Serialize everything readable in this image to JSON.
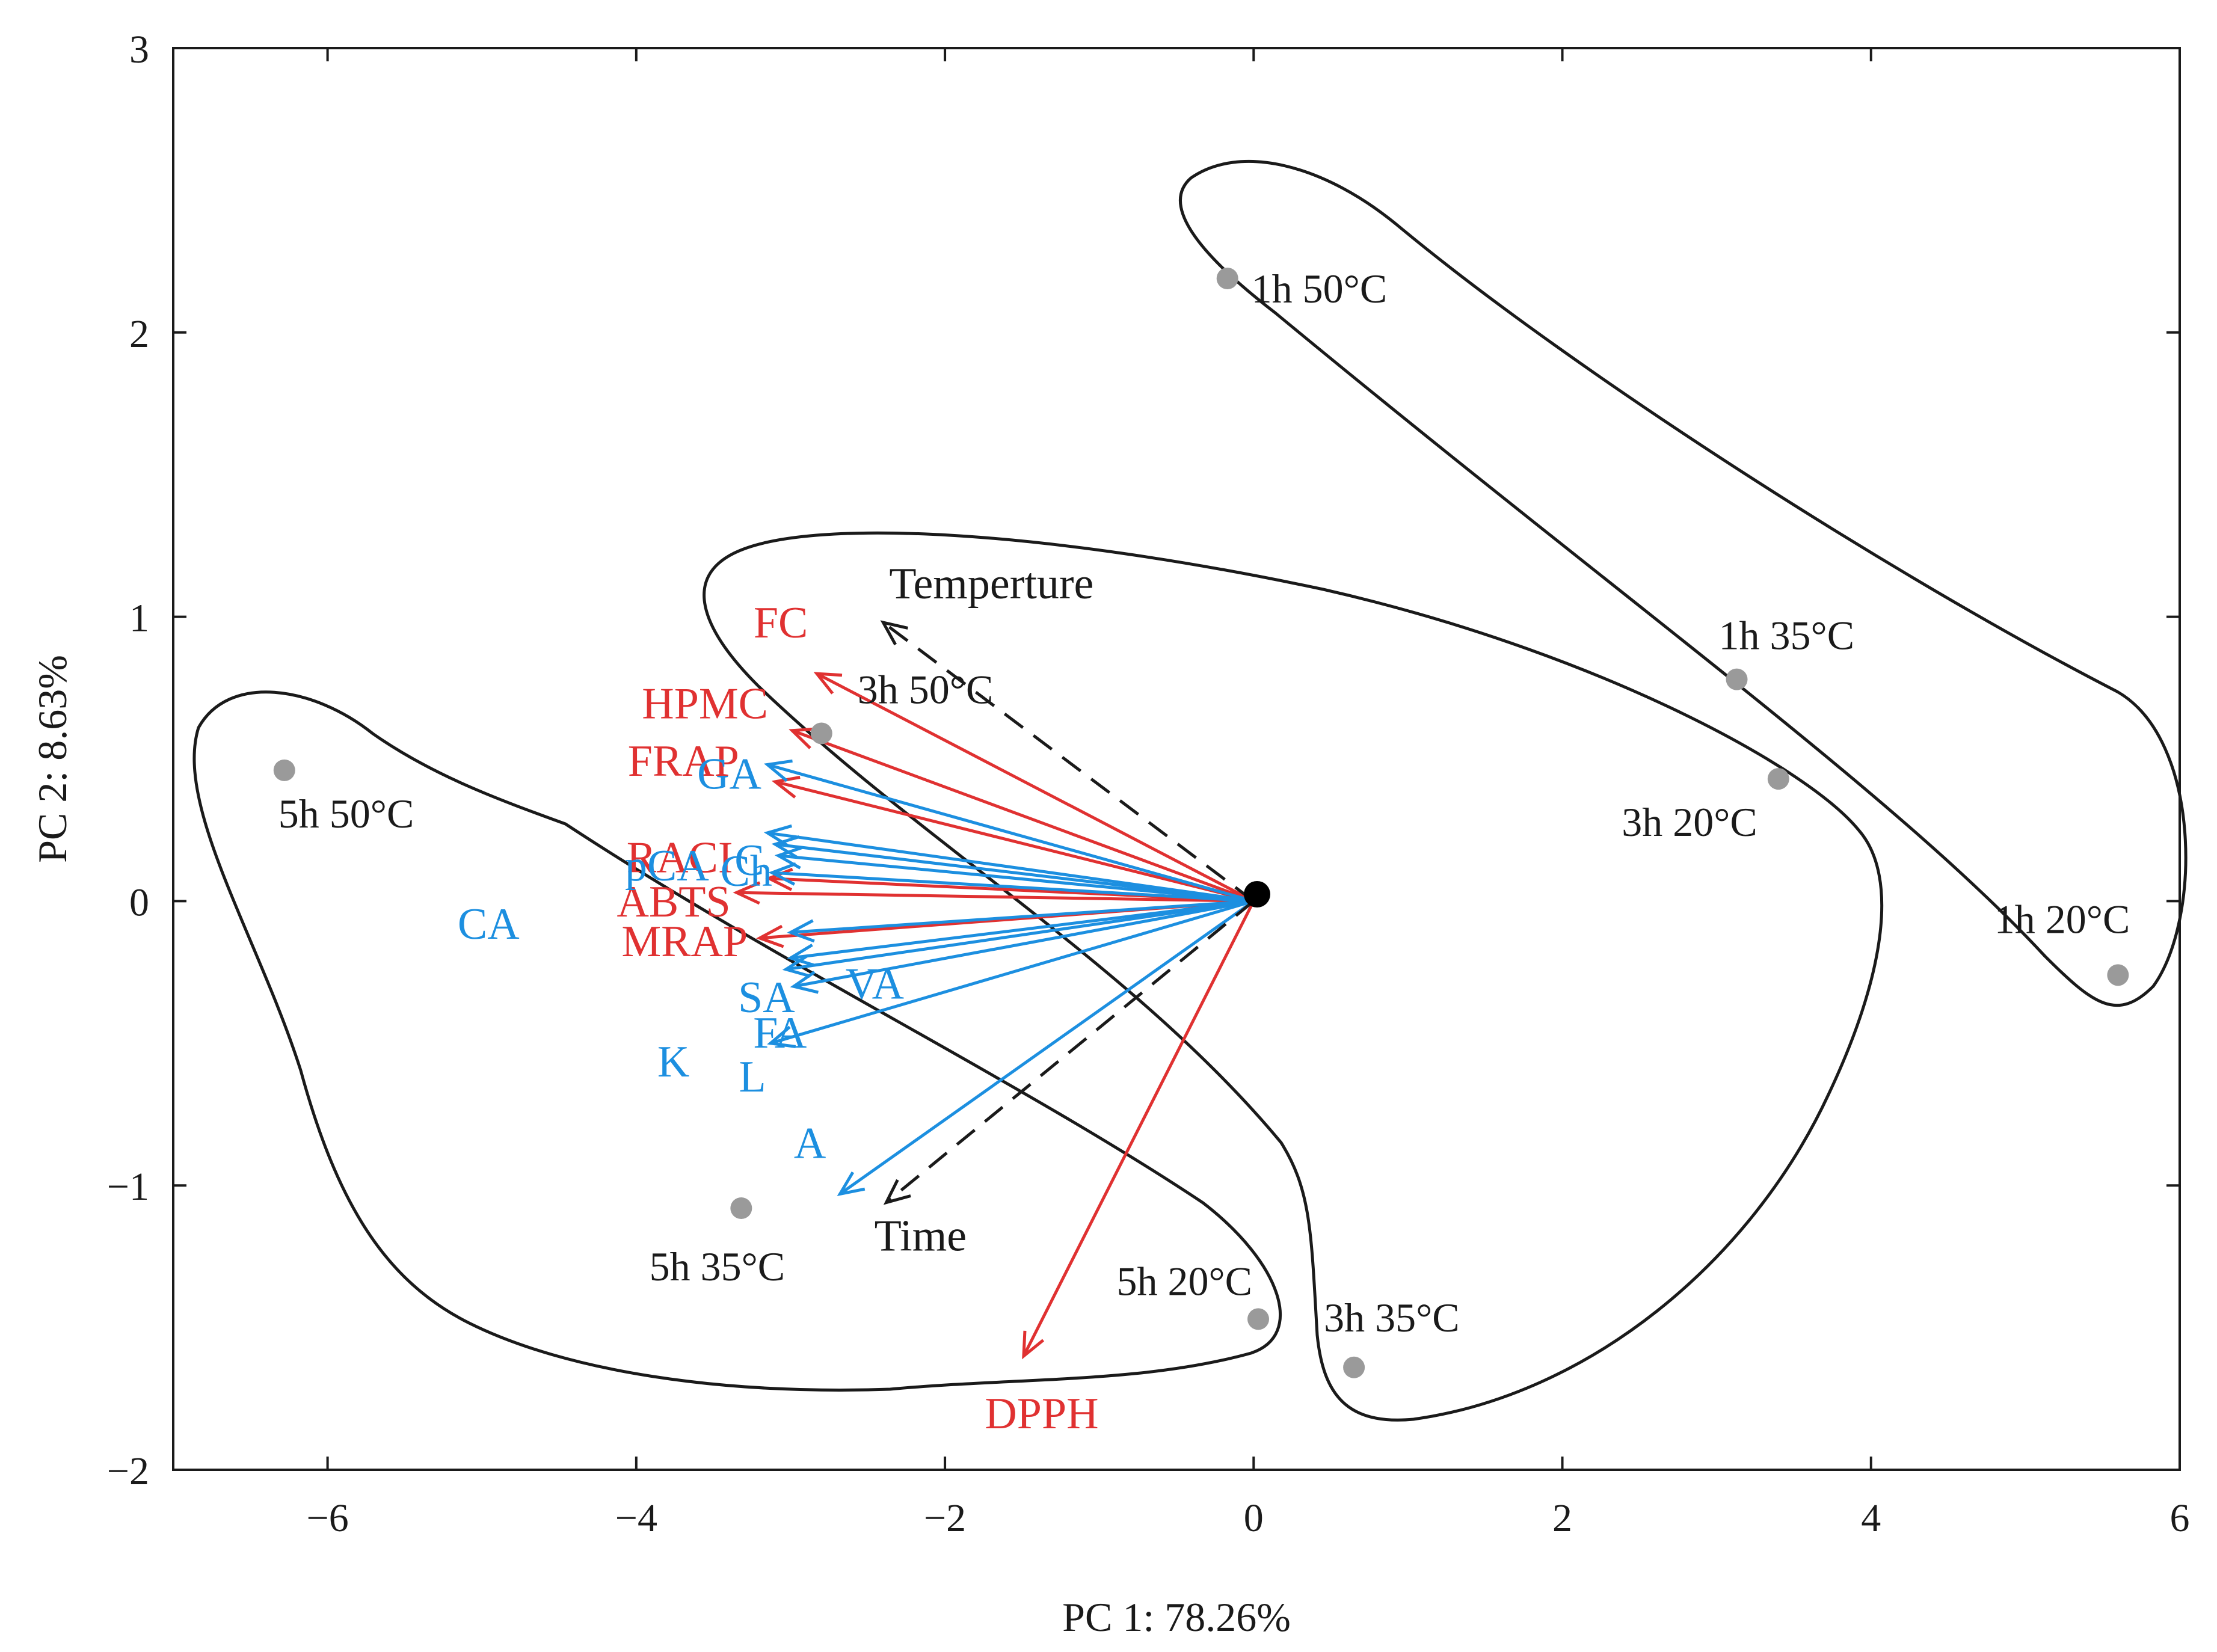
{
  "chart_data": {
    "type": "scatter",
    "subtype": "pca-biplot",
    "xlabel": "PC 1: 78.26%",
    "ylabel": "PC 2: 8.63%",
    "xlim": [
      -7,
      6
    ],
    "ylim": [
      -2,
      3
    ],
    "x_ticks": [
      -6,
      -4,
      -2,
      0,
      2,
      4,
      6
    ],
    "x_tick_labels": [
      "−6",
      "−4",
      "−2",
      "0",
      "2",
      "4",
      "6"
    ],
    "y_ticks": [
      -2,
      -1,
      0,
      1,
      2,
      3
    ],
    "y_tick_labels": [
      "−2",
      "−1",
      "0",
      "1",
      "2",
      "3"
    ],
    "colors": {
      "point": "#9a9a9a",
      "antioxidant": "#e03131",
      "phenolic": "#1c8fe0",
      "factor": "#1a1a1a",
      "origin": "#000000"
    },
    "scores": [
      {
        "label": "1h 50°C",
        "x": -0.17,
        "y": 2.19
      },
      {
        "label": "1h 35°C",
        "x": 3.13,
        "y": 0.78
      },
      {
        "label": "3h 20°C",
        "x": 3.4,
        "y": 0.43
      },
      {
        "label": "1h 20°C",
        "x": 5.6,
        "y": -0.26
      },
      {
        "label": "3h 50°C",
        "x": -2.8,
        "y": 0.59
      },
      {
        "label": "5h 50°C",
        "x": -6.28,
        "y": 0.46
      },
      {
        "label": "5h 35°C",
        "x": -3.32,
        "y": -1.08
      },
      {
        "label": "5h 20°C",
        "x": 0.03,
        "y": -1.47
      },
      {
        "label": "3h 35°C",
        "x": 0.65,
        "y": -1.64
      }
    ],
    "loadings": [
      {
        "label": "FC",
        "group": "antioxidant",
        "style": "solid",
        "x": -2.83,
        "y": 0.8
      },
      {
        "label": "HPMC",
        "group": "antioxidant",
        "style": "solid",
        "x": -2.99,
        "y": 0.6
      },
      {
        "label": "FRAP",
        "group": "antioxidant",
        "style": "solid",
        "x": -3.1,
        "y": 0.42
      },
      {
        "label": "RACI",
        "group": "antioxidant",
        "style": "solid",
        "x": -3.14,
        "y": 0.08
      },
      {
        "label": "ABTS",
        "group": "antioxidant",
        "style": "solid",
        "x": -3.35,
        "y": 0.03
      },
      {
        "label": "MRAP",
        "group": "antioxidant",
        "style": "solid",
        "x": -3.2,
        "y": -0.13
      },
      {
        "label": "DPPH",
        "group": "antioxidant",
        "style": "solid",
        "x": -1.49,
        "y": -1.6
      },
      {
        "label": "GA",
        "group": "phenolic",
        "style": "solid",
        "x": -3.15,
        "y": 0.48
      },
      {
        "label": "C",
        "group": "phenolic",
        "style": "solid",
        "x": -3.15,
        "y": 0.24
      },
      {
        "label": "pCA",
        "group": "phenolic",
        "style": "solid",
        "x": -3.1,
        "y": 0.2
      },
      {
        "label": "Ch",
        "group": "phenolic",
        "style": "solid",
        "x": -3.08,
        "y": 0.16
      },
      {
        "label": "CA",
        "group": "phenolic",
        "style": "solid",
        "x": -3.12,
        "y": 0.1
      },
      {
        "label": "VA",
        "group": "phenolic",
        "style": "solid",
        "x": -3.0,
        "y": -0.11
      },
      {
        "label": "SA",
        "group": "phenolic",
        "style": "solid",
        "x": -3.0,
        "y": -0.2
      },
      {
        "label": "FA",
        "group": "phenolic",
        "style": "solid",
        "x": -3.03,
        "y": -0.24
      },
      {
        "label": "K",
        "group": "phenolic",
        "style": "solid",
        "x": -2.98,
        "y": -0.3
      },
      {
        "label": "L",
        "group": "phenolic",
        "style": "solid",
        "x": -3.13,
        "y": -0.5
      },
      {
        "label": "A",
        "group": "phenolic",
        "style": "solid",
        "x": -2.68,
        "y": -1.03
      },
      {
        "label": "Temperture",
        "group": "factor",
        "style": "dashed",
        "x": -2.4,
        "y": 0.98
      },
      {
        "label": "Time",
        "group": "factor",
        "style": "dashed",
        "x": -2.38,
        "y": -1.06
      }
    ]
  }
}
